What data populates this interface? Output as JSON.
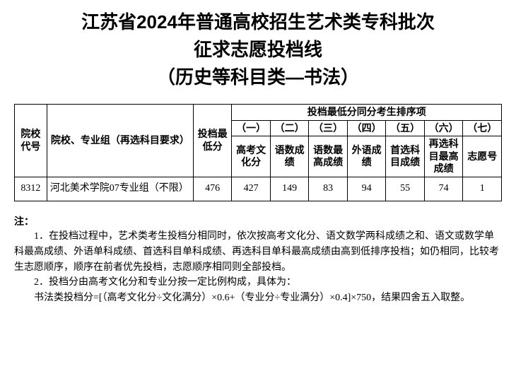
{
  "title": {
    "line1": "江苏省2024年普通高校招生艺术类专科批次",
    "line2": "征求志愿投档线",
    "line3": "（历史等科目类—书法）"
  },
  "table": {
    "headers": {
      "code": "院校代号",
      "school": "院校、专业组（再选科目要求）",
      "min": "投档最低分",
      "tie_group": "投档最低分同分考生排序项",
      "nums": [
        "（一）",
        "（二）",
        "（三）",
        "（四）",
        "（五）",
        "（六）",
        "（七）"
      ],
      "sub": [
        "高考文化分",
        "语数成绩",
        "语数最高成绩",
        "外语成绩",
        "首选科目成绩",
        "再选科目最高成绩",
        "志愿号"
      ]
    },
    "rows": [
      {
        "code": "8312",
        "school": "河北美术学院07专业组（不限）",
        "min": "476",
        "ties": [
          "427",
          "149",
          "83",
          "94",
          "55",
          "74",
          "1"
        ]
      }
    ]
  },
  "notes": {
    "heading": "注：",
    "items": [
      "1．在投档过程中，艺术类考生投档分相同时，依次按高考文化分、语文数学两科成绩之和、语文或数学单科最高成绩、外语单科成绩、首选科目单科成绩、再选科目单科最高成绩由高到低排序投档；如仍相同，比较考生志愿顺序，顺序在前者优先投档，志愿顺序相同则全部投档。",
      "2．投档分由高考文化分和专业分按一定比例构成，具体为："
    ],
    "formula": "书法类投档分=[（高考文化分÷文化满分）×0.6+（专业分÷专业满分）×0.4]×750，结果四舍五入取整。"
  }
}
